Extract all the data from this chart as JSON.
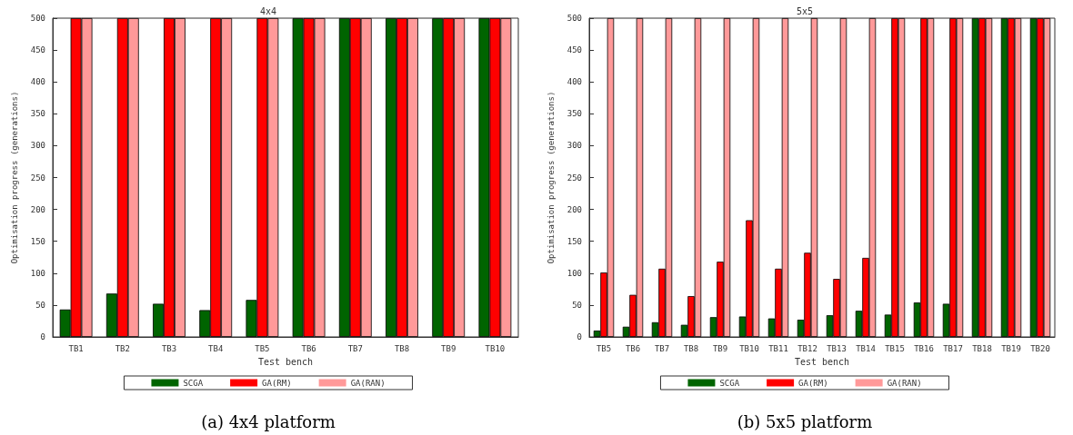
{
  "chart_data": [
    {
      "type": "bar",
      "title": "4x4",
      "xlabel": "Test bench",
      "ylabel": "Optimisation progress (generations)",
      "categories": [
        "TB1",
        "TB2",
        "TB3",
        "TB4",
        "TB5",
        "TB6",
        "TB7",
        "TB8",
        "TB9",
        "TB10"
      ],
      "series": [
        {
          "name": "SCGA",
          "color": "#006400",
          "values": [
            43,
            68,
            52,
            42,
            58,
            500,
            500,
            500,
            500,
            500
          ]
        },
        {
          "name": "GA(RM)",
          "color": "#ff0000",
          "values": [
            500,
            500,
            500,
            500,
            500,
            500,
            500,
            500,
            500,
            500
          ]
        },
        {
          "name": "GA(RAN)",
          "color": "#ff9999",
          "values": [
            500,
            500,
            500,
            500,
            500,
            500,
            500,
            500,
            500,
            500
          ]
        }
      ],
      "ylim": [
        0,
        500
      ],
      "yticks": [
        0,
        50,
        100,
        150,
        200,
        250,
        300,
        350,
        400,
        450,
        500
      ],
      "grid": false,
      "legend": "bottom",
      "annotations": [
        "(a) 4x4 platform"
      ]
    },
    {
      "type": "bar",
      "title": "5x5",
      "xlabel": "Test bench",
      "ylabel": "Optimisation progress (generations)",
      "categories": [
        "TB5",
        "TB6",
        "TB7",
        "TB8",
        "TB9",
        "TB10",
        "TB11",
        "TB12",
        "TB13",
        "TB14",
        "TB15",
        "TB16",
        "TB17",
        "TB18",
        "TB19",
        "TB20"
      ],
      "series": [
        {
          "name": "SCGA",
          "color": "#006400",
          "values": [
            10,
            16,
            23,
            19,
            31,
            32,
            29,
            27,
            34,
            41,
            35,
            54,
            52,
            500,
            500,
            500
          ]
        },
        {
          "name": "GA(RM)",
          "color": "#ff0000",
          "values": [
            101,
            66,
            107,
            64,
            118,
            183,
            107,
            132,
            91,
            124,
            500,
            500,
            500,
            500,
            500,
            500
          ]
        },
        {
          "name": "GA(RAN)",
          "color": "#ff9999",
          "values": [
            500,
            500,
            500,
            500,
            500,
            500,
            500,
            500,
            500,
            500,
            500,
            500,
            500,
            500,
            500,
            500
          ]
        }
      ],
      "ylim": [
        0,
        500
      ],
      "yticks": [
        0,
        50,
        100,
        150,
        200,
        250,
        300,
        350,
        400,
        450,
        500
      ],
      "grid": false,
      "legend": "bottom",
      "annotations": [
        "(b) 5x5 platform"
      ]
    }
  ]
}
